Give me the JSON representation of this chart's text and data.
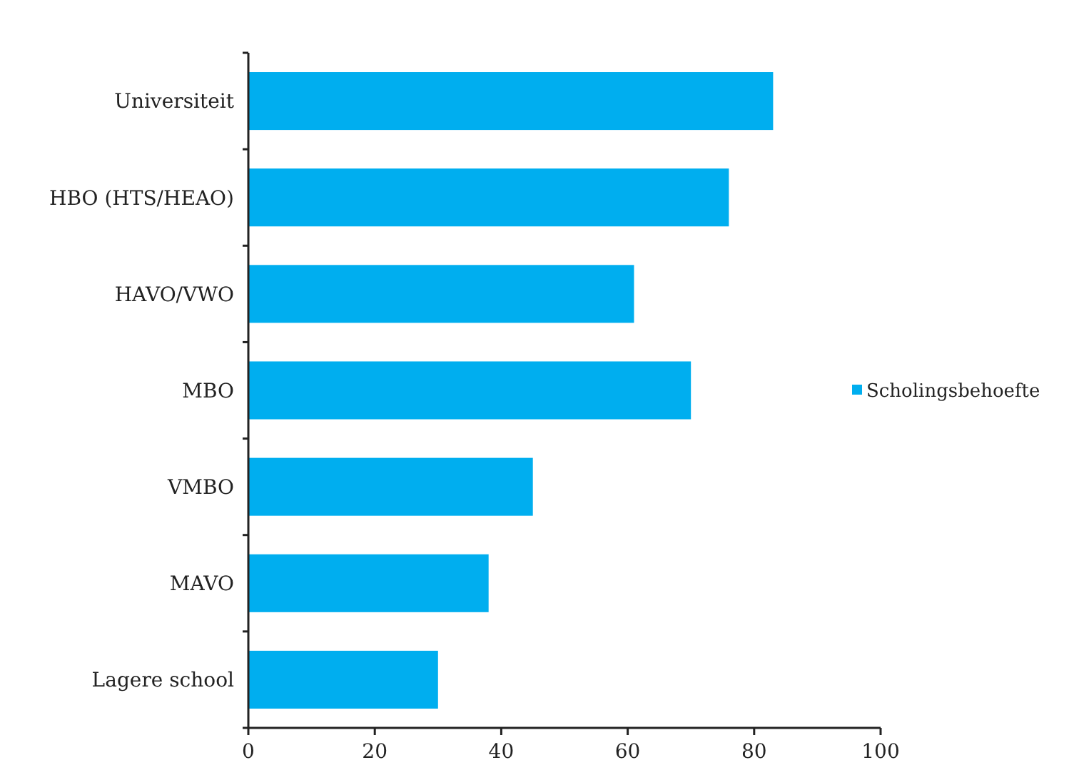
{
  "chart_data": {
    "type": "bar",
    "orientation": "horizontal",
    "categories": [
      "Universiteit",
      "HBO (HTS/HEAO)",
      "HAVO/VWO",
      "MBO",
      "VMBO",
      "MAVO",
      "Lagere school"
    ],
    "series": [
      {
        "name": "Scholingsbehoefte",
        "color": "#00aeef",
        "values": [
          83,
          76,
          61,
          70,
          45,
          38,
          30
        ]
      }
    ],
    "xlim": [
      0,
      100
    ],
    "xticks": [
      0,
      20,
      40,
      60,
      80,
      100
    ],
    "grid": false,
    "legend": "right"
  }
}
